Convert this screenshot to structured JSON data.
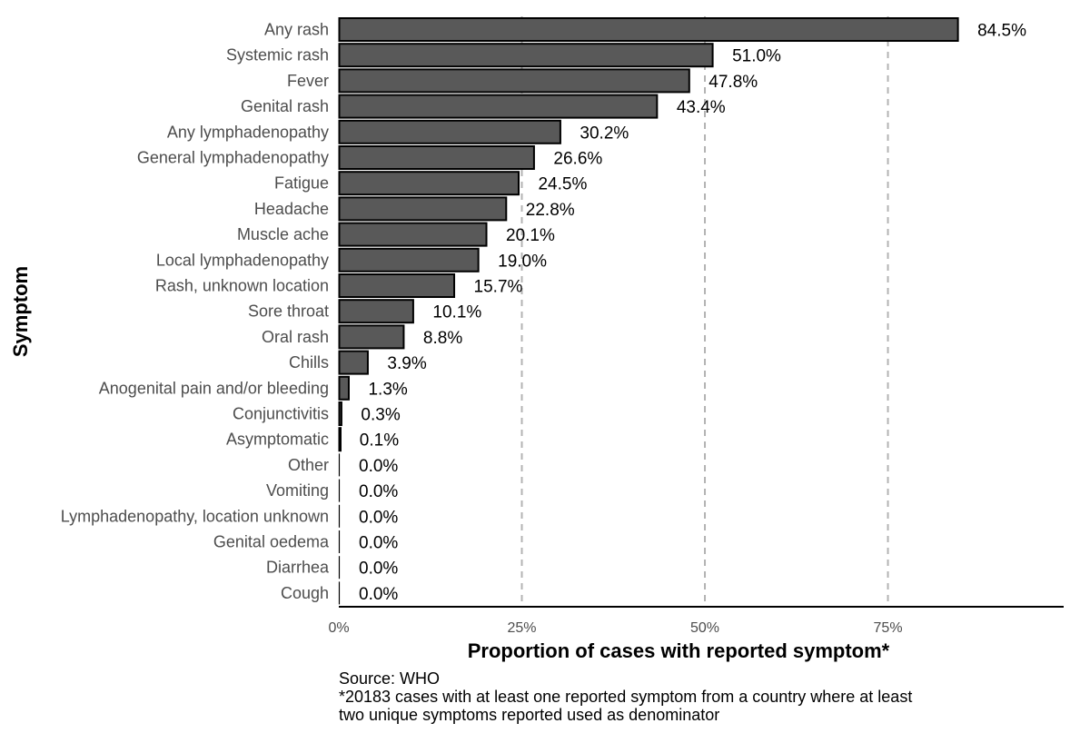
{
  "chart_data": {
    "type": "bar",
    "orientation": "horizontal",
    "categories": [
      "Any rash",
      "Systemic rash",
      "Fever",
      "Genital rash",
      "Any lymphadenopathy",
      "General lymphadenopathy",
      "Fatigue",
      "Headache",
      "Muscle ache",
      "Local lymphadenopathy",
      "Rash, unknown location",
      "Sore throat",
      "Oral rash",
      "Chills",
      "Anogenital pain and/or bleeding",
      "Conjunctivitis",
      "Asymptomatic",
      "Other",
      "Vomiting",
      "Lymphadenopathy, location unknown",
      "Genital oedema",
      "Diarrhea",
      "Cough"
    ],
    "values": [
      84.5,
      51.0,
      47.8,
      43.4,
      30.2,
      26.6,
      24.5,
      22.8,
      20.1,
      19.0,
      15.7,
      10.1,
      8.8,
      3.9,
      1.3,
      0.3,
      0.1,
      0.0,
      0.0,
      0.0,
      0.0,
      0.0,
      0.0
    ],
    "value_labels": [
      "84.5%",
      "51.0%",
      "47.8%",
      "43.4%",
      "30.2%",
      "26.6%",
      "24.5%",
      "22.8%",
      "20.1%",
      "19.0%",
      "15.7%",
      "10.1%",
      "8.8%",
      "3.9%",
      "1.3%",
      "0.3%",
      "0.1%",
      "0.0%",
      "0.0%",
      "0.0%",
      "0.0%",
      "0.0%",
      "0.0%"
    ],
    "xlabel": "Proportion of cases with reported symptom*",
    "ylabel": "Symptom",
    "xlim": [
      0,
      99
    ],
    "x_ticks": [
      0,
      25,
      50,
      75
    ],
    "x_tick_labels": [
      "0%",
      "25%",
      "50%",
      "75%"
    ],
    "grid": "vertical dashed at 25, 50, 75",
    "bar_color": "#595959",
    "bar_outline": "#000000"
  },
  "caption": {
    "lines": [
      "Source: WHO",
      "*20183 cases with at least one reported symptom from a country where at least",
      "two unique symptoms reported used as denominator"
    ]
  }
}
